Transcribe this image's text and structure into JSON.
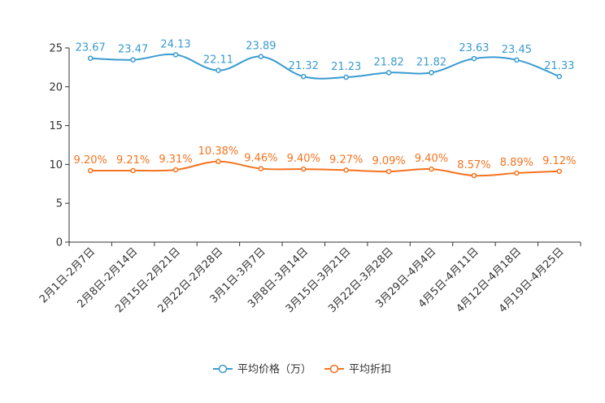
{
  "chart_data": {
    "type": "line",
    "categories": [
      "2月1日-2月7日",
      "2月8日-2月14日",
      "2月15日-2月21日",
      "2月22日-2月28日",
      "3月1日-3月7日",
      "3月8日-3月14日",
      "3月15日-3月21日",
      "3月22日-3月28日",
      "3月29日-4月4日",
      "4月5日-4月11日",
      "4月12日-4月18日",
      "4月19日-4月25日"
    ],
    "ylim": [
      0,
      25
    ],
    "yticks": [
      0,
      5,
      10,
      15,
      20,
      25
    ],
    "series": [
      {
        "name": "平均价格（万）",
        "color": "#3a9bd0",
        "values": [
          23.67,
          23.47,
          24.13,
          22.11,
          23.89,
          21.32,
          21.23,
          21.82,
          21.82,
          23.63,
          23.45,
          21.33
        ],
        "labels": [
          "23.67",
          "23.47",
          "24.13",
          "22.11",
          "23.89",
          "21.32",
          "21.23",
          "21.82",
          "21.82",
          "23.63",
          "23.45",
          "21.33"
        ]
      },
      {
        "name": "平均折扣",
        "color": "#f5731f",
        "values": [
          9.2,
          9.21,
          9.31,
          10.38,
          9.46,
          9.4,
          9.27,
          9.09,
          9.4,
          8.57,
          8.89,
          9.12
        ],
        "labels": [
          "9.20%",
          "9.21%",
          "9.31%",
          "10.38%",
          "9.46%",
          "9.40%",
          "9.27%",
          "9.09%",
          "9.40%",
          "8.57%",
          "8.89%",
          "9.12%"
        ]
      }
    ],
    "legend_position": "bottom-center"
  }
}
